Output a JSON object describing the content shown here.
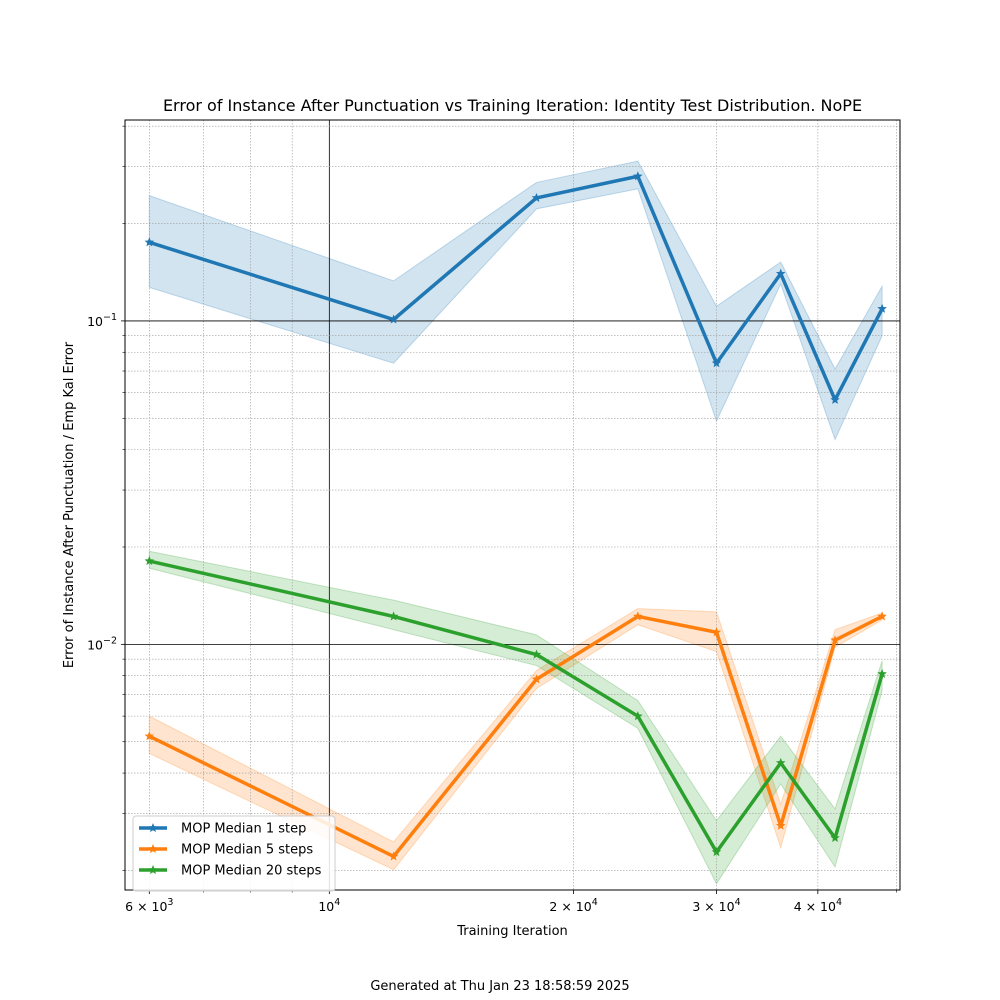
{
  "chart_data": {
    "type": "line",
    "title": "Error of Instance After Punctuation vs Training Iteration: Identity Test Distribution. NoPE",
    "xlabel": "Training Iteration",
    "ylabel": "Error of Instance After Punctuation / Emp Kal Error",
    "xscale": "log",
    "yscale": "log",
    "xlim": [
      5600,
      50500
    ],
    "ylim": [
      0.00174,
      0.418
    ],
    "x_ticks": [
      {
        "value": 6000,
        "label": "6 × 10³"
      },
      {
        "value": 10000,
        "label": "10⁴"
      },
      {
        "value": 20000,
        "label": "2 × 10⁴"
      },
      {
        "value": 30000,
        "label": "3 × 10⁴"
      },
      {
        "value": 40000,
        "label": "4 × 10⁴"
      }
    ],
    "y_ticks": [
      {
        "value": 0.01,
        "label": "10⁻²"
      },
      {
        "value": 0.1,
        "label": "10⁻¹"
      }
    ],
    "grid": true,
    "legend_position": "lower-left",
    "x": [
      6000,
      12000,
      18000,
      24000,
      30000,
      36000,
      42000,
      48000
    ],
    "series": [
      {
        "name": "MOP Median 1 step",
        "color": "#1f77b4",
        "values": [
          0.175,
          0.101,
          0.24,
          0.28,
          0.074,
          0.14,
          0.057,
          0.109
        ],
        "lower": [
          0.127,
          0.074,
          0.222,
          0.256,
          0.049,
          0.13,
          0.043,
          0.09
        ],
        "upper": [
          0.244,
          0.133,
          0.268,
          0.312,
          0.111,
          0.152,
          0.071,
          0.128
        ]
      },
      {
        "name": "MOP Median 5 steps",
        "color": "#ff7f0e",
        "values": [
          0.0052,
          0.00221,
          0.0078,
          0.0122,
          0.0109,
          0.00275,
          0.0103,
          0.0122
        ],
        "lower": [
          0.0046,
          0.00201,
          0.0073,
          0.0115,
          0.0095,
          0.00235,
          0.0098,
          0.0119
        ],
        "upper": [
          0.006,
          0.00245,
          0.0083,
          0.0129,
          0.0126,
          0.0032,
          0.0111,
          0.0125
        ]
      },
      {
        "name": "MOP Median 20 steps",
        "color": "#2ca02c",
        "values": [
          0.0181,
          0.0122,
          0.0093,
          0.006,
          0.00228,
          0.0043,
          0.00252,
          0.0081
        ],
        "lower": [
          0.0172,
          0.0111,
          0.0086,
          0.0055,
          0.00182,
          0.0037,
          0.00205,
          0.0072
        ],
        "upper": [
          0.0194,
          0.0137,
          0.0107,
          0.0067,
          0.00285,
          0.0052,
          0.0031,
          0.0089
        ]
      }
    ]
  },
  "footer": "Generated at Thu Jan 23 18:58:59 2025"
}
